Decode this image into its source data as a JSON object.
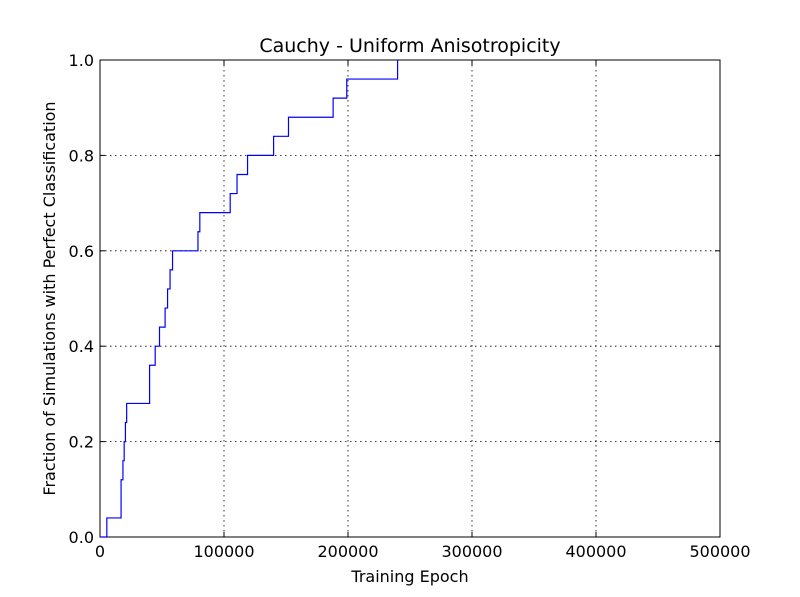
{
  "chart_data": {
    "type": "line",
    "title": "Cauchy - Uniform Anisotropicity",
    "xlabel": "Training Epoch",
    "ylabel": "Fraction of Simulations with Perfect Classification",
    "xlim": [
      0,
      500000
    ],
    "ylim": [
      0,
      1.0
    ],
    "x_ticks": [
      0,
      100000,
      200000,
      300000,
      400000,
      500000
    ],
    "x_tick_labels": [
      "0",
      "100000",
      "200000",
      "300000",
      "400000",
      "500000"
    ],
    "y_ticks": [
      0,
      0.2,
      0.4,
      0.6,
      0.8,
      1.0
    ],
    "y_tick_labels": [
      "0.0",
      "0.2",
      "0.4",
      "0.6",
      "0.8",
      "1.0"
    ],
    "grid": true,
    "step": true,
    "color": "#0000ff",
    "series": [
      {
        "x": [
          0,
          5500,
          17000,
          18500,
          19500,
          20500,
          21500,
          22500,
          40000,
          44500,
          48000,
          52500,
          54500,
          56500,
          58500,
          79000,
          80500,
          105000,
          110500,
          119000,
          140000,
          152000,
          188000,
          199000,
          240000
        ],
        "y": [
          0,
          0.04,
          0.12,
          0.16,
          0.2,
          0.24,
          0.28,
          0.28,
          0.36,
          0.4,
          0.44,
          0.48,
          0.52,
          0.56,
          0.6,
          0.64,
          0.68,
          0.72,
          0.76,
          0.8,
          0.84,
          0.88,
          0.92,
          0.96,
          1.0
        ]
      }
    ]
  }
}
